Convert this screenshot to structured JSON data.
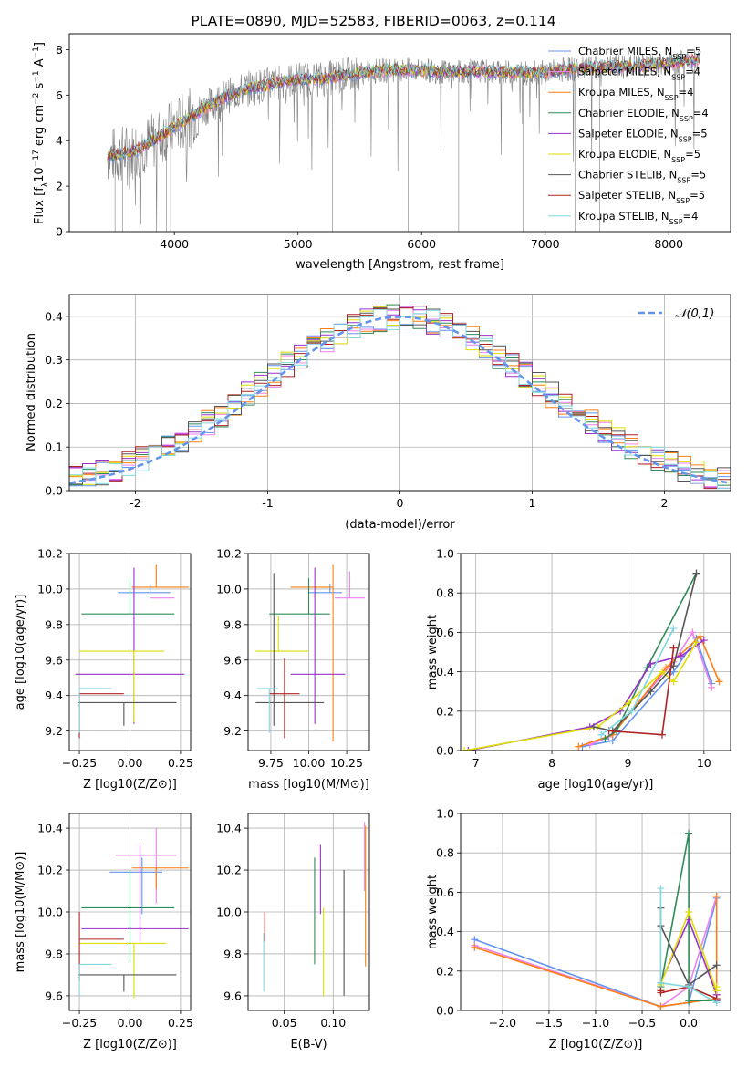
{
  "figure_title": "PLATE=0890, MJD=52583, FIBERID=0063, z=0.114",
  "model_colors": [
    "#6495ed",
    "#ee82ee",
    "#ff7f0e",
    "#2e8b57",
    "#9932cc",
    "#dede00",
    "#555555",
    "#b22222",
    "#7fd7e0"
  ],
  "chart_data": [
    {
      "type": "line",
      "title": "PLATE=0890, MJD=52583, FIBERID=0063, z=0.114",
      "xlabel": "wavelength [Angstrom, rest frame]",
      "ylabel": "Flux [f_λ 10^-17 erg cm^-2 s^-1 A^-1]",
      "xlim": [
        3150,
        8500
      ],
      "ylim": [
        0,
        8.7
      ],
      "xticks": [
        4000,
        5000,
        6000,
        7000,
        8000
      ],
      "yticks": [
        0,
        2,
        4,
        6,
        8
      ],
      "grid": false,
      "legend": "right",
      "legend_entries": [
        "Chabrier MILES, N_SSP=5",
        "Salpeter MILES, N_SSP=4",
        "Kroupa MILES, N_SSP=4",
        "Chabrier ELODIE, N_SSP=4",
        "Salpeter ELODIE, N_SSP=5",
        "Kroupa ELODIE, N_SSP=5",
        "Chabrier STELIB, N_SSP=5",
        "Salpeter STELIB, N_SSP=5",
        "Kroupa STELIB, N_SSP=4"
      ],
      "continuum": {
        "x": [
          3460,
          3650,
          3800,
          4000,
          4200,
          4400,
          4600,
          4800,
          5000,
          5200,
          5400,
          5600,
          5800,
          6000,
          6200,
          6400,
          6600,
          6800,
          7000,
          7200,
          7400,
          7600,
          7800,
          8000,
          8250
        ],
        "y": [
          3.3,
          3.5,
          3.9,
          4.6,
          5.3,
          5.9,
          6.3,
          6.5,
          6.7,
          6.7,
          6.9,
          7.05,
          7.1,
          7.1,
          7.0,
          7.05,
          7.0,
          7.0,
          7.0,
          7.15,
          7.2,
          7.25,
          7.3,
          7.4,
          7.55
        ]
      }
    },
    {
      "type": "bar",
      "xlabel": "(data-model)/error",
      "ylabel": "Normed distribution",
      "xlim": [
        -2.5,
        2.5
      ],
      "ylim": [
        0,
        0.45
      ],
      "xticks": [
        -2,
        -1,
        0,
        1,
        2
      ],
      "yticks": [
        0.0,
        0.1,
        0.2,
        0.3,
        0.4
      ],
      "grid": true,
      "legend": "top-right",
      "reference_curve": "𝒩(0,1)",
      "bins": [
        -2.5,
        2.5,
        50
      ]
    },
    {
      "type": "scatter",
      "xlabel": "Z [log10(Z/Z⊙)]",
      "ylabel": "age [log10(age/yr)]",
      "xlim": [
        -0.3,
        0.3
      ],
      "ylim": [
        9.09,
        10.2
      ],
      "xticks": [
        -0.25,
        0.0,
        0.25
      ],
      "xtick_labels": [
        "−0.25",
        "0.00",
        "0.25"
      ],
      "yticks": [
        9.2,
        9.4,
        9.6,
        9.8,
        10.0,
        10.2
      ],
      "grid": true,
      "points": [
        {
          "x": 0.1,
          "y": 9.98,
          "xerr": [
            0.16,
            0.1
          ],
          "yerr": [
            0.0,
            0.05
          ]
        },
        {
          "x": 0.22,
          "y": 9.95,
          "xerr": [
            0.12,
            0.0
          ],
          "yerr": [
            0.0,
            0.0
          ]
        },
        {
          "x": 0.13,
          "y": 10.01,
          "xerr": [
            0.12,
            0.16
          ],
          "yerr": [
            0.0,
            0.13
          ]
        },
        {
          "x": 0.0,
          "y": 9.86,
          "xerr": [
            0.24,
            0.22
          ],
          "yerr": [
            0.0,
            0.2
          ]
        },
        {
          "x": 0.02,
          "y": 9.52,
          "xerr": [
            0.29,
            0.25
          ],
          "yerr": [
            0.28,
            0.6
          ]
        },
        {
          "x": 0.02,
          "y": 9.65,
          "xerr": [
            0.27,
            0.15
          ],
          "yerr": [
            0.4,
            0.0
          ]
        },
        {
          "x": -0.03,
          "y": 9.36,
          "xerr": [
            0.23,
            0.26
          ],
          "yerr": [
            0.13,
            0.0
          ]
        },
        {
          "x": -0.25,
          "y": 9.41,
          "xerr": [
            0.0,
            0.22
          ],
          "yerr": [
            0.25,
            0.0
          ]
        },
        {
          "x": -0.25,
          "y": 9.44,
          "xerr": [
            0.0,
            0.16
          ],
          "yerr": [
            0.25,
            0.0
          ]
        }
      ]
    },
    {
      "type": "scatter",
      "xlabel": "mass [log10(M/M⊙)]",
      "xlim": [
        9.6,
        10.4
      ],
      "ylim": [
        9.09,
        10.2
      ],
      "xticks": [
        9.75,
        10.0,
        10.25
      ],
      "xtick_labels": [
        "9.75",
        "10.00",
        "10.25"
      ],
      "yticks": [
        9.2,
        9.4,
        9.6,
        9.8,
        10.0,
        10.2
      ],
      "grid": true
    },
    {
      "type": "line",
      "xlabel": "age [log10(age/yr)]",
      "ylabel": "mass weight",
      "xlim": [
        6.8,
        10.35
      ],
      "ylim": [
        0,
        1.0
      ],
      "xticks": [
        7,
        8,
        9,
        10
      ],
      "yticks": [
        0.0,
        0.2,
        0.4,
        0.6,
        0.8,
        1.0
      ],
      "grid": true,
      "series": [
        {
          "x": [
            8.4,
            8.8,
            9.6,
            9.9,
            10.1
          ],
          "y": [
            0.02,
            0.05,
            0.4,
            0.57,
            0.34
          ]
        },
        {
          "x": [
            8.5,
            8.75,
            9.6,
            9.85,
            10.1
          ],
          "y": [
            0.03,
            0.07,
            0.45,
            0.6,
            0.32
          ]
        },
        {
          "x": [
            8.35,
            8.8,
            9.5,
            9.95,
            10.2
          ],
          "y": [
            0.02,
            0.08,
            0.42,
            0.58,
            0.35
          ]
        },
        {
          "x": [
            8.7,
            8.85,
            9.25,
            9.9
          ],
          "y": [
            0.06,
            0.1,
            0.42,
            0.9
          ]
        },
        {
          "x": [
            6.9,
            8.5,
            8.9,
            9.3,
            9.7,
            10.0
          ],
          "y": [
            0.0,
            0.12,
            0.2,
            0.44,
            0.48,
            0.56
          ]
        },
        {
          "x": [
            6.85,
            8.6,
            9.0,
            9.45,
            9.6,
            9.9
          ],
          "y": [
            0.0,
            0.12,
            0.24,
            0.4,
            0.35,
            0.55
          ]
        },
        {
          "x": [
            8.55,
            8.8,
            9.3,
            9.6,
            9.9
          ],
          "y": [
            0.12,
            0.1,
            0.3,
            0.43,
            0.9
          ]
        },
        {
          "x": [
            8.75,
            9.45,
            9.6
          ],
          "y": [
            0.1,
            0.08,
            0.52
          ]
        },
        {
          "x": [
            8.65,
            9.05,
            9.6
          ],
          "y": [
            0.08,
            0.2,
            0.62
          ]
        }
      ]
    },
    {
      "type": "scatter",
      "xlabel": "Z [log10(Z/Z⊙)]",
      "ylabel": "mass [log10(M/M⊙)]",
      "xlim": [
        -0.3,
        0.3
      ],
      "ylim": [
        9.53,
        10.47
      ],
      "xticks": [
        -0.25,
        0.0,
        0.25
      ],
      "xtick_labels": [
        "−0.25",
        "0.00",
        "0.25"
      ],
      "yticks": [
        9.6,
        9.8,
        10.0,
        10.2,
        10.4
      ],
      "grid": true
    },
    {
      "type": "scatter",
      "xlabel": "E(B-V)",
      "xlim": [
        0.013,
        0.137
      ],
      "ylim": [
        9.53,
        10.47
      ],
      "xticks": [
        0.05,
        0.1
      ],
      "xtick_labels": [
        "0.05",
        "0.10"
      ],
      "yticks": [
        9.6,
        9.8,
        10.0,
        10.2,
        10.4
      ],
      "grid": true
    },
    {
      "type": "line",
      "xlabel": "Z [log10(Z/Z⊙)]",
      "ylabel": "mass weight",
      "xlim": [
        -2.45,
        0.45
      ],
      "ylim": [
        0,
        1.0
      ],
      "xticks": [
        -2.0,
        -1.5,
        -1.0,
        -0.5,
        0.0
      ],
      "xtick_labels": [
        "−2.0",
        "−1.5",
        "−1.0",
        "−0.5",
        "0.0"
      ],
      "yticks": [
        0.0,
        0.2,
        0.4,
        0.6,
        0.8,
        1.0
      ],
      "grid": true
    }
  ]
}
